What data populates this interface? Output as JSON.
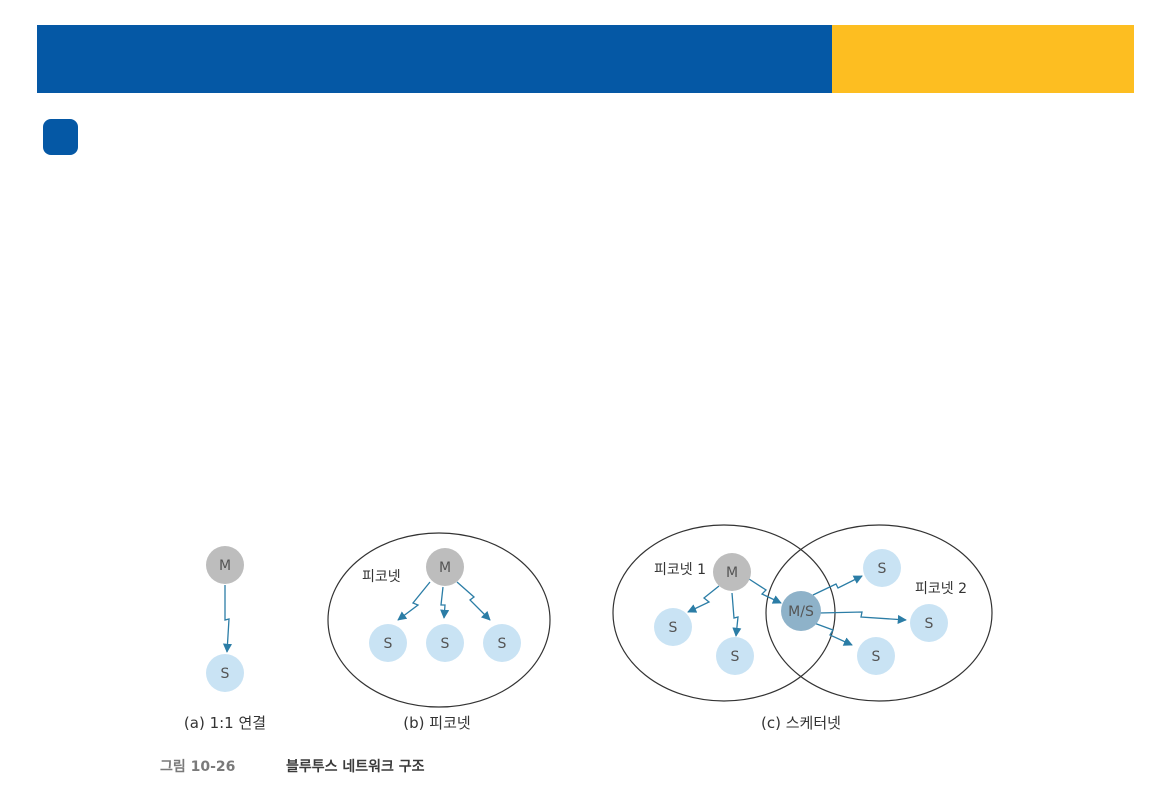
{
  "colors": {
    "header_blue": "#0558a5",
    "header_yellow": "#fdbe21",
    "bullet": "#0558a5",
    "master_node": "#bdbdbd",
    "slave_node": "#c9e3f4",
    "bridge_node": "#8eb2c9",
    "arrow": "#2b7da6",
    "ellipse_stroke": "#333333"
  },
  "diagram": {
    "a": {
      "master": "M",
      "slave": "S",
      "caption": "(a) 1:1 연결"
    },
    "b": {
      "region_label": "피코넷",
      "master": "M",
      "slaves": [
        "S",
        "S",
        "S"
      ],
      "caption": "(b) 피코넷"
    },
    "c": {
      "region1_label": "피코넷 1",
      "region2_label": "피코넷 2",
      "master": "M",
      "bridge": "M/S",
      "slaves_piconet1": [
        "S",
        "S"
      ],
      "slaves_piconet2": [
        "S",
        "S",
        "S"
      ],
      "caption": "(c) 스케터넷"
    }
  },
  "figure_caption": {
    "number": "그림 10-26",
    "title": "블루투스 네트워크 구조"
  }
}
